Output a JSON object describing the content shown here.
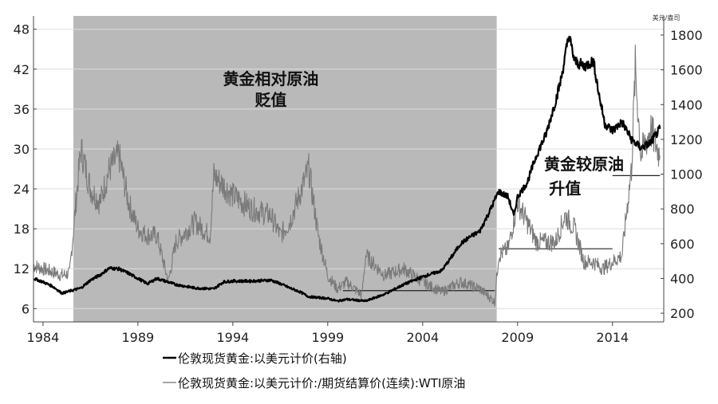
{
  "chart_data": {
    "type": "line",
    "right_axis_unit": "美元/盎司",
    "x_ticks": [
      "1984",
      "1989",
      "1994",
      "1999",
      "2004",
      "2009",
      "2014"
    ],
    "xlim": [
      1983.5,
      2016.7
    ],
    "left_axis": {
      "ticks": [
        "6",
        "12",
        "18",
        "24",
        "30",
        "36",
        "42",
        "48"
      ],
      "ylim": [
        4,
        50
      ]
    },
    "right_axis": {
      "ticks": [
        "200",
        "400",
        "600",
        "800",
        "1000",
        "1200",
        "1400",
        "1600",
        "1800"
      ],
      "ylim": [
        150,
        1910
      ]
    },
    "shaded_region": {
      "x": [
        1985.6,
        2007.9
      ],
      "color": "#b9b9b9"
    },
    "annotations": [
      {
        "text": "黄金相对原油",
        "x": 1996.0,
        "y_right": 1515
      },
      {
        "text": "贬值",
        "x": 1996.0,
        "y_right": 1395
      },
      {
        "text": "黄金较原油",
        "x": 2012.5,
        "y_right": 1025
      },
      {
        "text": "升值",
        "x": 2011.5,
        "y_right": 885
      }
    ],
    "reference_lines": [
      {
        "axis": "left",
        "x": [
          1999.8,
          2007.8
        ],
        "y": 8.7
      },
      {
        "axis": "left",
        "x": [
          2008.0,
          2014.0
        ],
        "y": 15.0
      },
      {
        "axis": "left",
        "x": [
          2014.0,
          2016.5
        ],
        "y": 26.0
      }
    ],
    "legend_position": "bottom",
    "series": [
      {
        "name": "伦敦现货黄金:以美元计价(右轴)",
        "axis": "right",
        "color": "#000000",
        "x": [
          1983.5,
          1984.0,
          1984.5,
          1985.0,
          1985.5,
          1986.0,
          1986.5,
          1987.0,
          1987.5,
          1988.0,
          1988.5,
          1989.0,
          1989.5,
          1990.0,
          1991.0,
          1992.0,
          1993.0,
          1993.5,
          1994.0,
          1995.0,
          1996.0,
          1996.5,
          1997.0,
          1997.5,
          1998.0,
          1999.0,
          1999.5,
          2000.0,
          2001.0,
          2002.0,
          2003.0,
          2004.0,
          2005.0,
          2005.5,
          2006.0,
          2006.5,
          2007.0,
          2007.5,
          2008.0,
          2008.5,
          2008.8,
          2009.0,
          2009.5,
          2010.0,
          2010.5,
          2011.0,
          2011.3,
          2011.7,
          2012.0,
          2012.5,
          2013.0,
          2013.3,
          2013.6,
          2014.0,
          2014.5,
          2015.0,
          2015.5,
          2016.0,
          2016.5
        ],
        "y": [
          400,
          380,
          355,
          315,
          330,
          345,
          390,
          420,
          460,
          455,
          430,
          400,
          370,
          400,
          365,
          345,
          340,
          380,
          385,
          385,
          390,
          370,
          345,
          325,
          295,
          285,
          270,
          280,
          270,
          310,
          365,
          410,
          445,
          520,
          600,
          640,
          670,
          780,
          900,
          870,
          760,
          870,
          950,
          1110,
          1230,
          1420,
          1550,
          1800,
          1650,
          1620,
          1650,
          1450,
          1290,
          1250,
          1300,
          1200,
          1150,
          1180,
          1260
        ]
      },
      {
        "name": "伦敦现货黄金:以美元计价:/期货结算价(连续):WTI原油",
        "axis": "left",
        "color": "#7a7a7a",
        "x": [
          1983.5,
          1984.0,
          1984.5,
          1985.0,
          1985.4,
          1985.8,
          1986.0,
          1986.5,
          1987.0,
          1987.5,
          1988.0,
          1988.5,
          1989.0,
          1989.5,
          1990.0,
          1990.6,
          1991.0,
          1992.0,
          1992.8,
          1993.0,
          1994.0,
          1995.0,
          1996.0,
          1996.5,
          1997.0,
          1997.5,
          1998.0,
          1998.5,
          1999.0,
          1999.5,
          2000.0,
          2000.8,
          2001.0,
          2002.0,
          2003.0,
          2004.0,
          2005.0,
          2006.0,
          2007.0,
          2007.8,
          2008.0,
          2008.5,
          2009.0,
          2010.0,
          2011.0,
          2011.5,
          2012.0,
          2012.5,
          2013.0,
          2013.5,
          2014.0,
          2014.5,
          2014.8,
          2015.0,
          2015.2,
          2015.5,
          2016.0,
          2016.5
        ],
        "y": [
          12.5,
          12.0,
          11.5,
          11.0,
          11.3,
          24.0,
          30.0,
          24.0,
          22.0,
          27.0,
          29.0,
          22.0,
          18.0,
          17.0,
          17.0,
          10.0,
          16.0,
          19.0,
          17.0,
          26.0,
          23.0,
          21.0,
          20.0,
          17.0,
          19.0,
          23.0,
          27.0,
          17.0,
          11.0,
          9.0,
          10.0,
          8.0,
          14.0,
          11.0,
          12.0,
          10.0,
          8.5,
          10.0,
          9.0,
          7.0,
          14.0,
          15.0,
          22.0,
          16.0,
          16.0,
          20.0,
          18.0,
          13.0,
          13.0,
          12.0,
          13.0,
          14.0,
          22.0,
          27.0,
          42.0,
          29.0,
          33.0,
          29.0
        ]
      }
    ]
  }
}
